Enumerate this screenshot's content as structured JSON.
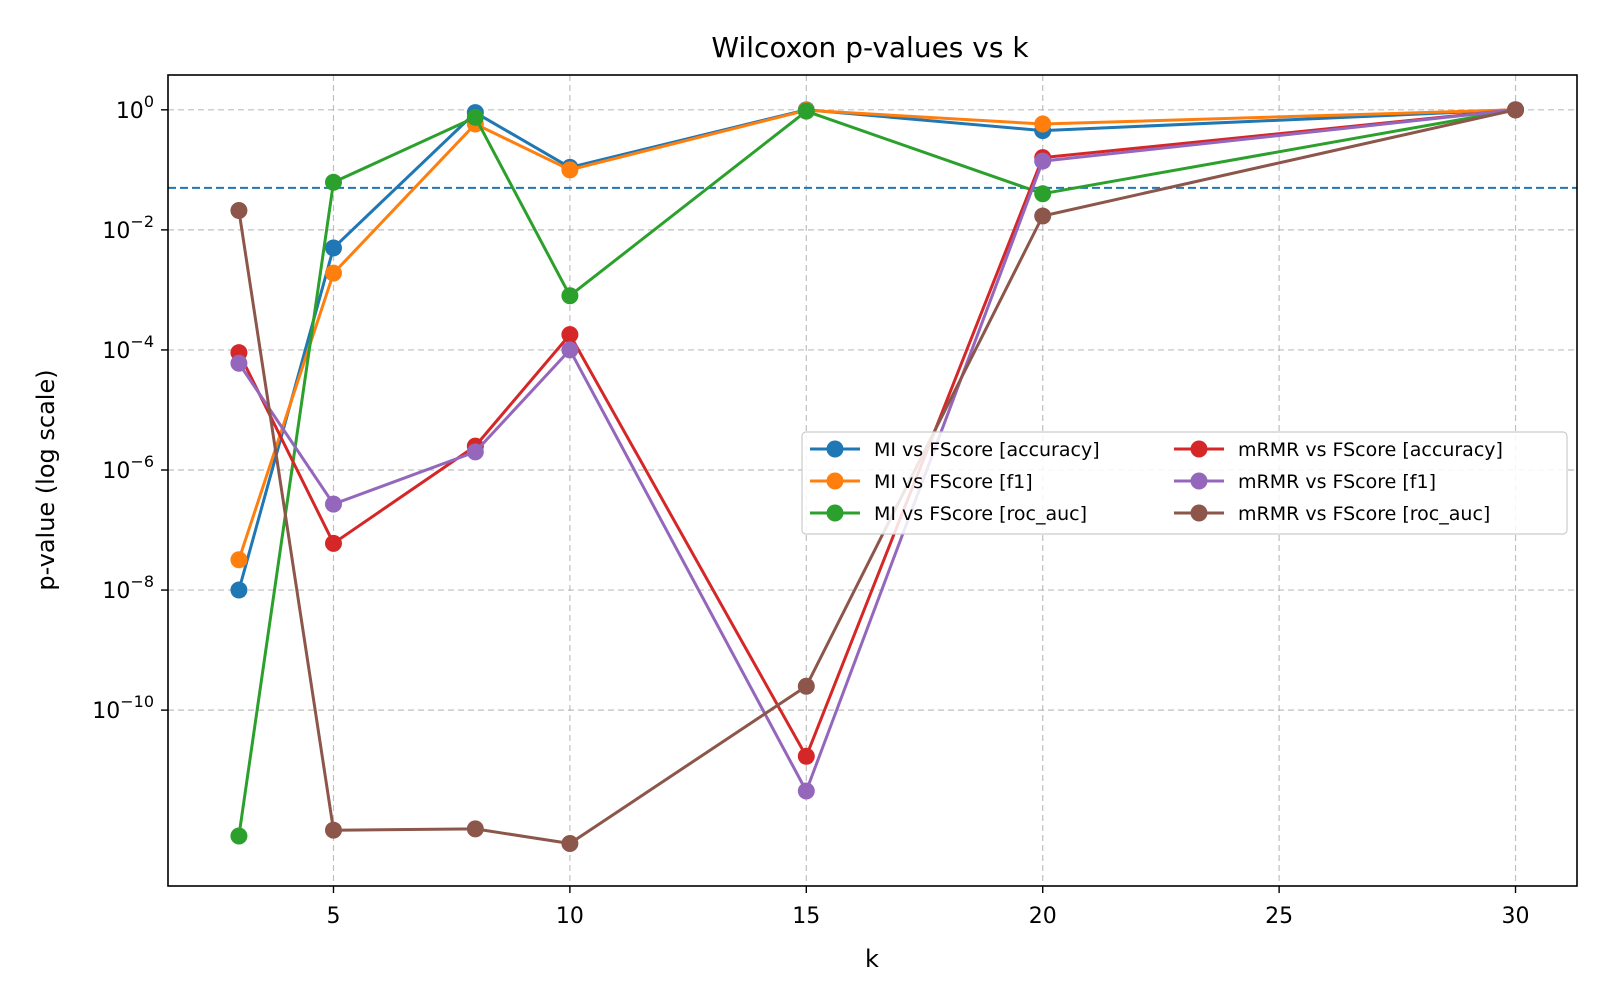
{
  "chart_data": {
    "type": "line",
    "title": "Wilcoxon p-values vs k",
    "xlabel": "k",
    "ylabel": "p-value (log scale)",
    "yscale": "log",
    "xlim": [
      1.5,
      31.3
    ],
    "ylim_log10": [
      -12.93,
      0.58
    ],
    "xticks": [
      5,
      10,
      15,
      20,
      25,
      30
    ],
    "yticks_exp": [
      0,
      -2,
      -4,
      -6,
      -8,
      -10
    ],
    "grid": true,
    "legend_placement": "center-right",
    "threshold": {
      "value": 0.05,
      "color": "#1f77b4",
      "style": "dashed"
    },
    "x": [
      3,
      5,
      8,
      10,
      15,
      20,
      30
    ],
    "series": [
      {
        "name": "MI vs FScore [accuracy]",
        "color": "#1f77b4",
        "values": [
          1e-08,
          0.005,
          0.9,
          0.11,
          1.0,
          0.45,
          1.0
        ]
      },
      {
        "name": "MI vs FScore [f1]",
        "color": "#ff7f0e",
        "values": [
          3.2e-08,
          0.0019,
          0.58,
          0.1,
          0.98,
          0.58,
          1.0
        ]
      },
      {
        "name": "MI vs FScore [roc_auc]",
        "color": "#2ca02c",
        "values": [
          8e-13,
          0.062,
          0.75,
          0.0008,
          0.95,
          0.04,
          1.0
        ]
      },
      {
        "name": "mRMR vs FScore [accuracy]",
        "color": "#d62728",
        "values": [
          9e-05,
          6e-08,
          2.5e-06,
          0.00018,
          1.7e-11,
          0.16,
          1.0
        ]
      },
      {
        "name": "mRMR vs FScore [f1]",
        "color": "#9467bd",
        "values": [
          6e-05,
          2.7e-07,
          2e-06,
          0.0001,
          4.5e-12,
          0.14,
          1.0
        ]
      },
      {
        "name": "mRMR vs FScore [roc_auc]",
        "color": "#8c564b",
        "values": [
          0.021,
          1e-12,
          1.05e-12,
          6e-13,
          2.5e-10,
          0.017,
          1.0
        ]
      }
    ]
  }
}
